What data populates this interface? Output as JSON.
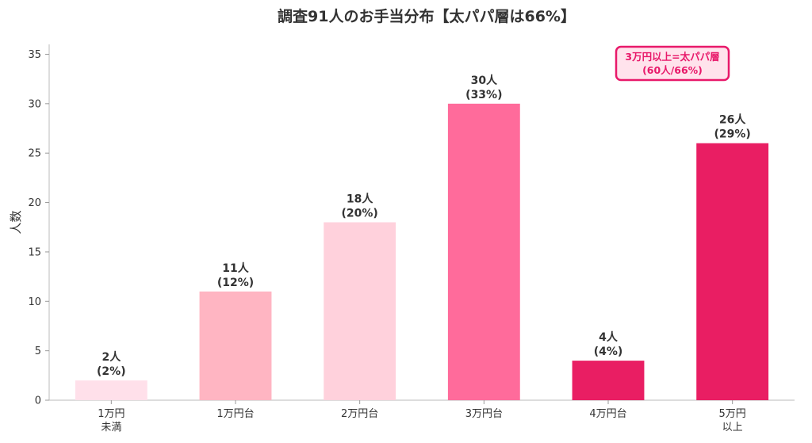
{
  "chart_data": {
    "type": "bar",
    "title": "調査91人のお手当分布【太パパ層は66%】",
    "xlabel": "",
    "ylabel": "人数",
    "ylim": [
      0,
      36
    ],
    "yticks": [
      0,
      5,
      10,
      15,
      20,
      25,
      30,
      35
    ],
    "grid": false,
    "categories": [
      [
        "1万円",
        "未満"
      ],
      [
        "1万円台"
      ],
      [
        "2万円台"
      ],
      [
        "3万円台"
      ],
      [
        "4万円台"
      ],
      [
        "5万円",
        "以上"
      ]
    ],
    "values": [
      2,
      11,
      18,
      30,
      4,
      26
    ],
    "data_labels": [
      [
        "2人",
        "(2%)"
      ],
      [
        "11人",
        "(12%)"
      ],
      [
        "18人",
        "(20%)"
      ],
      [
        "30人",
        "(33%)"
      ],
      [
        "4人",
        "(4%)"
      ],
      [
        "26人",
        "(29%)"
      ]
    ],
    "colors": [
      "#ffe0ea",
      "#ffb5c2",
      "#ffd1dc",
      "#ff6b9b",
      "#e91e63",
      "#e91e63"
    ],
    "annotation": {
      "lines": [
        "3万円以上=太パパ層",
        "(60人/66%)"
      ],
      "placement": "top-right",
      "text_color": "#e8196a",
      "border_color": "#e8196a",
      "fill_color": "#ffe3ec"
    }
  }
}
